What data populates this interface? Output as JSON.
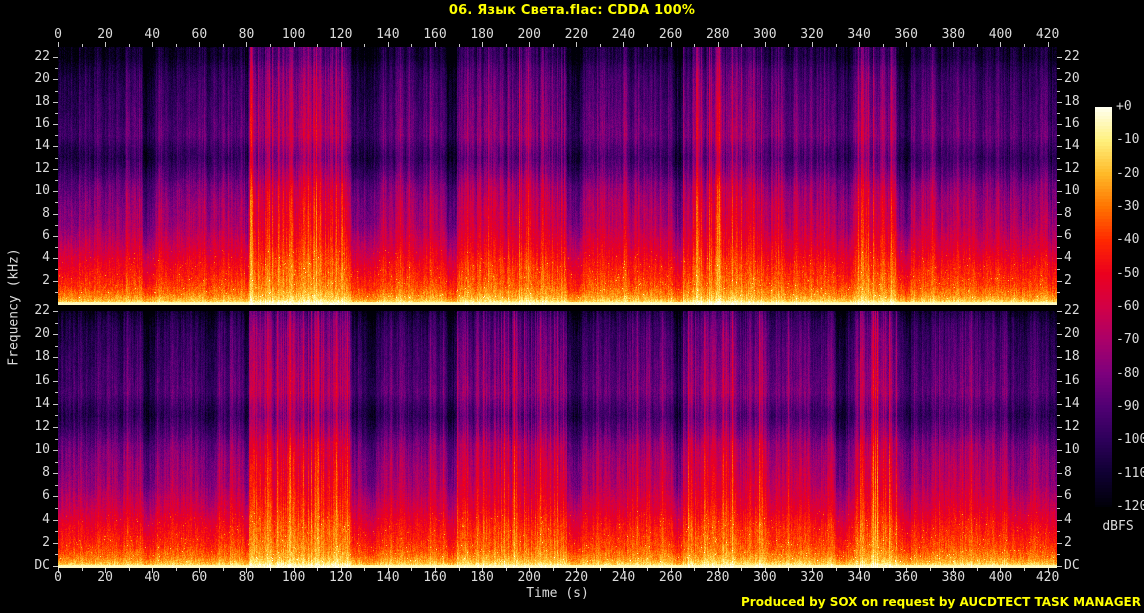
{
  "title": "06. Язык Света.flac: CDDA 100%",
  "credit": "Produced by SOX on request by AUCDTECT TASK MANAGER",
  "colors": {
    "background": "#000000",
    "axis_text": "#dcdcdc",
    "tick_mark": "#c8c8c8",
    "title_text": "#ffff00",
    "credit_text": "#ffff00"
  },
  "chart_data": {
    "type": "heatmap",
    "subtype": "audio-spectrogram",
    "channels": 2,
    "title": "06. Язык Света.flac: CDDA 100%",
    "x_axis": {
      "label": "Time (s)",
      "unit": "s",
      "range": [
        0,
        424
      ],
      "major_tick_step": 20,
      "minor_tick_step": 10,
      "major_ticks": [
        0,
        20,
        40,
        60,
        80,
        100,
        120,
        140,
        160,
        180,
        200,
        220,
        240,
        260,
        280,
        300,
        320,
        340,
        360,
        380,
        400,
        420
      ]
    },
    "y_axis": {
      "label": "Frequency (kHz)",
      "range_khz": [
        0,
        22.05
      ],
      "tick_values": [
        22,
        20,
        18,
        16,
        14,
        12,
        10,
        8,
        6,
        4,
        2,
        0
      ],
      "tick_labels": [
        "22",
        "20",
        "18",
        "16",
        "14",
        "12",
        "10",
        "8",
        "6",
        "4",
        "2",
        "DC"
      ],
      "panel1_omits_dc_label": true
    },
    "colorbar": {
      "label": "dBFS",
      "range_db": [
        0,
        -120
      ],
      "tick_labels": [
        "+0",
        "-10",
        "-20",
        "-30",
        "-40",
        "-50",
        "-60",
        "-70",
        "-80",
        "-90",
        "-100",
        "-110",
        "-120"
      ],
      "palette": [
        {
          "db": 0,
          "color": "#fffff0"
        },
        {
          "db": -10,
          "color": "#fff07d"
        },
        {
          "db": -20,
          "color": "#ffb928"
        },
        {
          "db": -30,
          "color": "#ff7300"
        },
        {
          "db": -40,
          "color": "#ff2800"
        },
        {
          "db": -50,
          "color": "#eb001e"
        },
        {
          "db": -60,
          "color": "#d20046"
        },
        {
          "db": -70,
          "color": "#aa0069"
        },
        {
          "db": -80,
          "color": "#7d007d"
        },
        {
          "db": -90,
          "color": "#500073"
        },
        {
          "db": -100,
          "color": "#2d005a"
        },
        {
          "db": -110,
          "color": "#0f0032"
        },
        {
          "db": -120,
          "color": "#000008"
        }
      ]
    },
    "notable_features": [
      "Bright yellow-white energy band at lowest frequencies (0-500 Hz) across whole track",
      "Persistent dark notch band around 12-14 kHz",
      "Loudest passages ~81-124 s and ~338-356 s with orange transients reaching 22 kHz",
      "Short quiet gaps near 40, 80, 167, 219, 263, 334 and 359 s",
      "Both stereo channels nearly identical"
    ],
    "loudness_envelope": {
      "description": "Approximate per-section relative loudness (0-1) read from the spectrogram columns",
      "sections": [
        {
          "t0": 0,
          "t1": 8,
          "level": 0.52,
          "bright": false
        },
        {
          "t0": 8,
          "t1": 36,
          "level": 0.58,
          "bright": false
        },
        {
          "t0": 36,
          "t1": 41,
          "level": 0.33,
          "bright": false
        },
        {
          "t0": 41,
          "t1": 62,
          "level": 0.6,
          "bright": false
        },
        {
          "t0": 62,
          "t1": 66,
          "level": 0.46,
          "bright": false
        },
        {
          "t0": 66,
          "t1": 79,
          "level": 0.62,
          "bright": false
        },
        {
          "t0": 79,
          "t1": 81,
          "level": 0.31,
          "bright": false
        },
        {
          "t0": 81,
          "t1": 124,
          "level": 0.88,
          "bright": true
        },
        {
          "t0": 124,
          "t1": 135,
          "level": 0.46,
          "bright": false
        },
        {
          "t0": 135,
          "t1": 165,
          "level": 0.62,
          "bright": false
        },
        {
          "t0": 165,
          "t1": 169,
          "level": 0.35,
          "bright": false
        },
        {
          "t0": 169,
          "t1": 216,
          "level": 0.72,
          "bright": true
        },
        {
          "t0": 216,
          "t1": 222,
          "level": 0.41,
          "bright": false
        },
        {
          "t0": 222,
          "t1": 261,
          "level": 0.66,
          "bright": false
        },
        {
          "t0": 261,
          "t1": 265,
          "level": 0.34,
          "bright": false
        },
        {
          "t0": 265,
          "t1": 300,
          "level": 0.76,
          "bright": true
        },
        {
          "t0": 300,
          "t1": 330,
          "level": 0.71,
          "bright": false
        },
        {
          "t0": 330,
          "t1": 338,
          "level": 0.46,
          "bright": false
        },
        {
          "t0": 338,
          "t1": 356,
          "level": 0.82,
          "bright": true
        },
        {
          "t0": 356,
          "t1": 362,
          "level": 0.41,
          "bright": false
        },
        {
          "t0": 362,
          "t1": 403,
          "level": 0.66,
          "bright": false
        },
        {
          "t0": 403,
          "t1": 412,
          "level": 0.52,
          "bright": false
        },
        {
          "t0": 412,
          "t1": 420,
          "level": 0.64,
          "bright": false
        },
        {
          "t0": 420,
          "t1": 424,
          "level": 0.46,
          "bright": false
        }
      ]
    },
    "frequency_profile_db": [
      {
        "khz": 0,
        "db": -2
      },
      {
        "khz": 0.15,
        "db": -6
      },
      {
        "khz": 0.4,
        "db": -14
      },
      {
        "khz": 0.8,
        "db": -20
      },
      {
        "khz": 1.5,
        "db": -26
      },
      {
        "khz": 2.5,
        "db": -30
      },
      {
        "khz": 3.5,
        "db": -33
      },
      {
        "khz": 5,
        "db": -40
      },
      {
        "khz": 7,
        "db": -47
      },
      {
        "khz": 9,
        "db": -52
      },
      {
        "khz": 10.5,
        "db": -58
      },
      {
        "khz": 11.5,
        "db": -66
      },
      {
        "khz": 13,
        "db": -76
      },
      {
        "khz": 14,
        "db": -72
      },
      {
        "khz": 15,
        "db": -66
      },
      {
        "khz": 16,
        "db": -68
      },
      {
        "khz": 18,
        "db": -72
      },
      {
        "khz": 20,
        "db": -76
      },
      {
        "khz": 21,
        "db": -80
      },
      {
        "khz": 22.05,
        "db": -88
      }
    ]
  }
}
